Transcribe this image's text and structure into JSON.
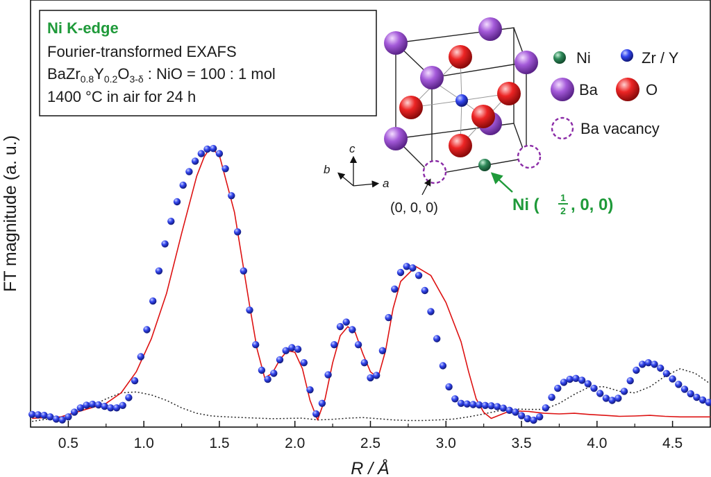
{
  "chart_data": {
    "type": "line",
    "title": "",
    "xlabel": "R / Å",
    "ylabel": "FT magnitude (a. u.)",
    "xlim": [
      0.25,
      4.75
    ],
    "ylim": [
      0,
      100
    ],
    "x_ticks": [
      0.5,
      1.0,
      1.5,
      2.0,
      2.5,
      3.0,
      3.5,
      4.0,
      4.5
    ],
    "x_tick_labels": [
      "0.5",
      "1.0",
      "1.5",
      "2.0",
      "2.5",
      "3.0",
      "3.5",
      "4.0",
      "4.5"
    ],
    "y_ticks_visible": false,
    "grid": false,
    "series": [
      {
        "style": "blue-spheres",
        "color": "#2233dd",
        "x": [
          0.26,
          0.3,
          0.34,
          0.38,
          0.42,
          0.46,
          0.5,
          0.54,
          0.58,
          0.62,
          0.66,
          0.7,
          0.74,
          0.78,
          0.82,
          0.86,
          0.9,
          0.94,
          0.98,
          1.02,
          1.06,
          1.1,
          1.14,
          1.18,
          1.22,
          1.26,
          1.3,
          1.34,
          1.38,
          1.42,
          1.46,
          1.5,
          1.54,
          1.58,
          1.62,
          1.66,
          1.7,
          1.74,
          1.78,
          1.82,
          1.86,
          1.9,
          1.94,
          1.98,
          2.02,
          2.06,
          2.1,
          2.14,
          2.18,
          2.22,
          2.26,
          2.3,
          2.34,
          2.38,
          2.42,
          2.46,
          2.5,
          2.54,
          2.58,
          2.62,
          2.66,
          2.7,
          2.74,
          2.78,
          2.82,
          2.86,
          2.9,
          2.94,
          2.98,
          3.02,
          3.06,
          3.1,
          3.14,
          3.18,
          3.22,
          3.26,
          3.3,
          3.34,
          3.38,
          3.42,
          3.46,
          3.5,
          3.54,
          3.58,
          3.62,
          3.66,
          3.7,
          3.74,
          3.78,
          3.82,
          3.86,
          3.9,
          3.94,
          3.98,
          4.02,
          4.06,
          4.1,
          4.14,
          4.18,
          4.22,
          4.26,
          4.3,
          4.34,
          4.38,
          4.42,
          4.46,
          4.5,
          4.54,
          4.58,
          4.62,
          4.66,
          4.7,
          4.74
        ],
        "y": [
          2.8,
          2.7,
          2.5,
          2.0,
          1.3,
          1.0,
          2.0,
          3.6,
          5.0,
          5.9,
          6.2,
          6.0,
          5.5,
          5.0,
          5.0,
          5.8,
          8.4,
          14.0,
          22.0,
          31.0,
          40.5,
          50.5,
          59.5,
          67.0,
          73.5,
          79.0,
          83.5,
          87.0,
          89.5,
          91.0,
          91.2,
          89.5,
          84.5,
          75.5,
          63.5,
          50.5,
          37.5,
          26.0,
          17.5,
          14.5,
          16.5,
          21.0,
          24.0,
          25.0,
          24.5,
          20.0,
          11.0,
          3.0,
          6.5,
          16.0,
          26.0,
          32.0,
          33.5,
          31.0,
          26.0,
          20.0,
          15.0,
          15.8,
          24.0,
          35.0,
          44.5,
          50.0,
          52.0,
          51.5,
          49.0,
          44.0,
          37.0,
          28.0,
          19.0,
          12.0,
          8.0,
          6.5,
          6.3,
          6.1,
          6.0,
          5.8,
          5.7,
          5.4,
          4.9,
          4.2,
          3.6,
          2.4,
          1.4,
          0.9,
          2.0,
          5.0,
          8.5,
          11.5,
          13.5,
          14.5,
          14.8,
          14.2,
          13.0,
          11.5,
          9.8,
          8.2,
          7.5,
          8.2,
          10.5,
          14.0,
          17.5,
          19.5,
          20.0,
          19.5,
          18.2,
          16.4,
          14.6,
          12.8,
          11.2,
          9.7,
          8.5,
          7.6,
          6.8
        ]
      },
      {
        "style": "red-solid",
        "color": "#dd1111",
        "x": [
          0.26,
          0.35,
          0.45,
          0.55,
          0.65,
          0.75,
          0.85,
          0.95,
          1.05,
          1.15,
          1.25,
          1.35,
          1.4,
          1.44,
          1.5,
          1.6,
          1.7,
          1.75,
          1.8,
          1.85,
          1.9,
          1.95,
          2.0,
          2.05,
          2.1,
          2.15,
          2.2,
          2.25,
          2.3,
          2.35,
          2.4,
          2.45,
          2.5,
          2.55,
          2.6,
          2.65,
          2.7,
          2.8,
          2.9,
          3.0,
          3.1,
          3.15,
          3.2,
          3.25,
          3.3,
          3.35,
          3.4,
          3.45,
          3.55,
          3.65,
          3.75,
          3.85,
          3.95,
          4.05,
          4.15,
          4.25,
          4.35,
          4.45,
          4.55,
          4.65,
          4.75
        ],
        "y": [
          1.5,
          1.8,
          2.0,
          3.5,
          5.0,
          6.5,
          10.0,
          17.0,
          28.0,
          43.0,
          63.0,
          82.0,
          88.5,
          91.5,
          89.0,
          70.0,
          39.0,
          24.5,
          15.0,
          16.5,
          21.0,
          24.0,
          23.5,
          18.0,
          7.5,
          1.0,
          8.0,
          20.0,
          29.0,
          32.0,
          30.0,
          23.0,
          17.0,
          15.0,
          24.0,
          38.0,
          47.0,
          52.0,
          49.0,
          40.0,
          27.0,
          17.0,
          8.0,
          3.5,
          1.5,
          2.5,
          3.5,
          4.0,
          3.8,
          3.2,
          3.0,
          3.2,
          2.8,
          2.5,
          2.2,
          2.3,
          2.5,
          2.2,
          2.0,
          2.0,
          2.0
        ]
      },
      {
        "style": "black-dotted",
        "color": "#222222",
        "x": [
          0.26,
          0.35,
          0.45,
          0.55,
          0.65,
          0.75,
          0.85,
          0.95,
          1.05,
          1.15,
          1.25,
          1.35,
          1.45,
          1.55,
          1.65,
          1.75,
          1.85,
          1.95,
          2.05,
          2.15,
          2.25,
          2.35,
          2.45,
          2.55,
          2.65,
          2.75,
          2.85,
          2.95,
          3.05,
          3.15,
          3.25,
          3.35,
          3.45,
          3.55,
          3.65,
          3.75,
          3.85,
          3.95,
          4.05,
          4.15,
          4.25,
          4.35,
          4.45,
          4.55,
          4.65,
          4.75
        ],
        "y": [
          0.5,
          1.2,
          2.0,
          3.5,
          5.5,
          8.0,
          10.0,
          10.3,
          9.3,
          7.5,
          5.0,
          3.2,
          2.3,
          2.0,
          1.8,
          1.6,
          1.4,
          1.5,
          1.6,
          1.0,
          1.2,
          1.6,
          1.8,
          1.4,
          1.0,
          0.8,
          0.8,
          1.0,
          1.3,
          2.0,
          3.0,
          4.0,
          4.6,
          4.5,
          4.5,
          6.5,
          9.5,
          12.0,
          12.0,
          10.5,
          10.0,
          12.0,
          15.5,
          18.0,
          16.5,
          13.0
        ]
      }
    ],
    "legend_box": {
      "line1": "Ni K-edge",
      "line2": "Fourier-transformed EXAFS",
      "line3_formula": {
        "base": "BaZr",
        "sub1": "0.8",
        "y": "Y",
        "sub2": "0.2",
        "o": "O",
        "sub3": "3-δ",
        "rest": " : NiO = 100 : 1 mol"
      },
      "line4": "1400 °C in air for 24 h"
    },
    "inset": {
      "axes": {
        "a": "a",
        "b": "b",
        "c": "c"
      },
      "origin_label": "(0, 0, 0)",
      "ni_site_label": {
        "prefix": "Ni (",
        "frac_num": "1",
        "frac_den": "2",
        "suffix": ", 0, 0)"
      },
      "key": [
        {
          "label": "Ni",
          "color": "#2f8a5a"
        },
        {
          "label": "Zr / Y",
          "color": "#2a44dd"
        },
        {
          "label": "Ba",
          "color": "#a35ad8"
        },
        {
          "label": "O",
          "color": "#e82222"
        },
        {
          "label": "Ba vacancy",
          "color": "#8a2aa6"
        }
      ]
    },
    "accent_color": "#1f9a3a"
  }
}
